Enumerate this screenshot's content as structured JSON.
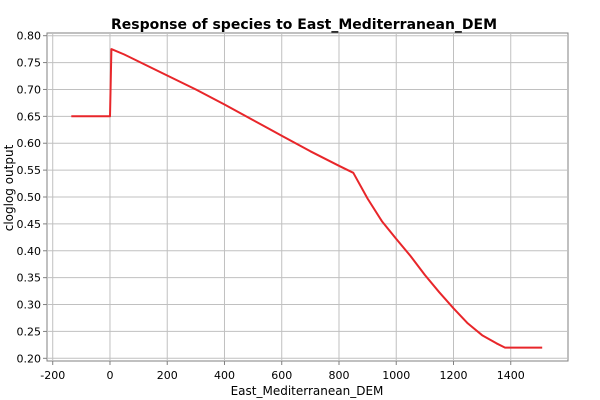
{
  "chart_data": {
    "type": "line",
    "title": "Response of species to East_Mediterranean_DEM",
    "xlabel": "East_Mediterranean_DEM",
    "ylabel": "cloglog output",
    "xlim": [
      -220,
      1600
    ],
    "ylim": [
      0.195,
      0.805
    ],
    "x_ticks": [
      -200,
      0,
      200,
      400,
      600,
      800,
      1000,
      1200,
      1400
    ],
    "y_ticks": [
      0.2,
      0.25,
      0.3,
      0.35,
      0.4,
      0.45,
      0.5,
      0.55,
      0.6,
      0.65,
      0.7,
      0.75,
      0.8
    ],
    "grid": true,
    "series": [
      {
        "color": "#e8262a",
        "x": [
          -135,
          0,
          5,
          50,
          100,
          200,
          300,
          400,
          500,
          600,
          700,
          800,
          850,
          900,
          950,
          1000,
          1050,
          1100,
          1150,
          1200,
          1250,
          1300,
          1350,
          1380,
          1400,
          1510
        ],
        "y": [
          0.65,
          0.65,
          0.775,
          0.765,
          0.752,
          0.726,
          0.7,
          0.672,
          0.643,
          0.614,
          0.585,
          0.558,
          0.545,
          0.497,
          0.455,
          0.422,
          0.39,
          0.355,
          0.323,
          0.293,
          0.265,
          0.243,
          0.228,
          0.22,
          0.22,
          0.22
        ]
      }
    ]
  }
}
